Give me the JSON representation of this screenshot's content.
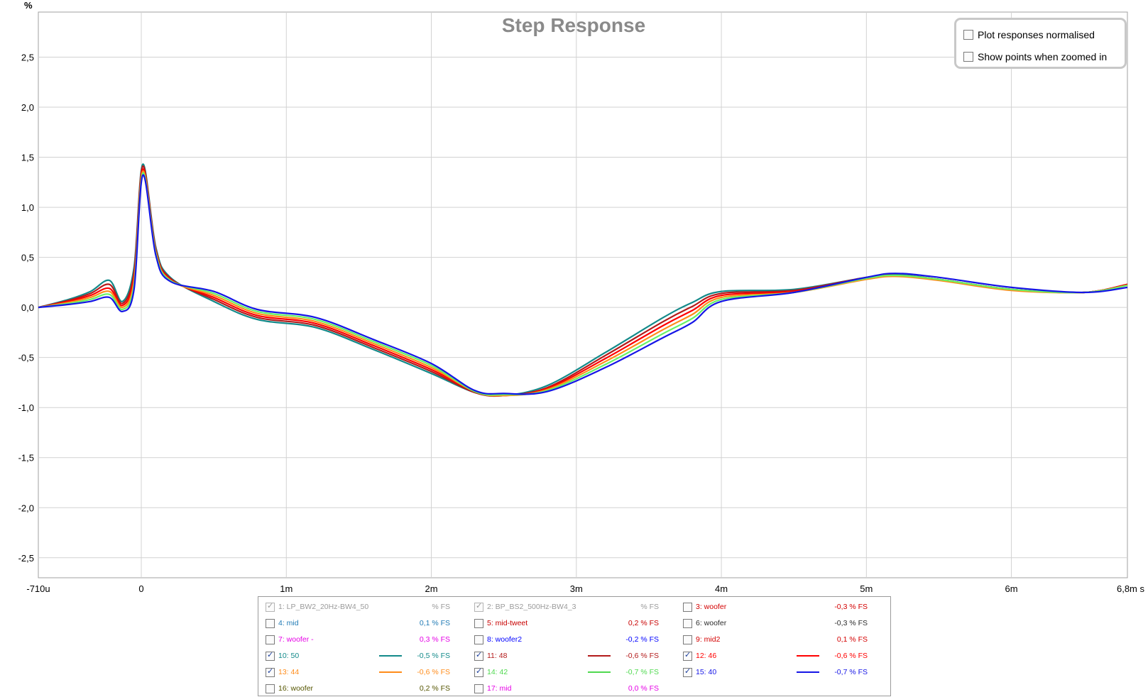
{
  "chart_data": {
    "type": "line",
    "title": "Step Response",
    "ylabel": "%",
    "xlabel": "",
    "xlim": [
      -0.00071,
      0.0068
    ],
    "ylim": [
      -2.7,
      2.95
    ],
    "x_ticks": [
      {
        "v": -0.00071,
        "label": "-710u"
      },
      {
        "v": 0,
        "label": "0"
      },
      {
        "v": 0.001,
        "label": "1m"
      },
      {
        "v": 0.002,
        "label": "2m"
      },
      {
        "v": 0.003,
        "label": "3m"
      },
      {
        "v": 0.004,
        "label": "4m"
      },
      {
        "v": 0.005,
        "label": "5m"
      },
      {
        "v": 0.006,
        "label": "6m"
      },
      {
        "v": 0.0068,
        "label": "6,8m s"
      }
    ],
    "y_ticks": [
      {
        "v": 2.5,
        "label": "2,5"
      },
      {
        "v": 2.0,
        "label": "2,0"
      },
      {
        "v": 1.5,
        "label": "1,5"
      },
      {
        "v": 1.0,
        "label": "1,0"
      },
      {
        "v": 0.5,
        "label": "0,5"
      },
      {
        "v": 0.0,
        "label": "0,0"
      },
      {
        "v": -0.5,
        "label": "-0,5"
      },
      {
        "v": -1.0,
        "label": "-1,0"
      },
      {
        "v": -1.5,
        "label": "-1,5"
      },
      {
        "v": -2.0,
        "label": "-2,0"
      },
      {
        "v": -2.5,
        "label": "-2,5"
      }
    ],
    "grid": true,
    "series": [
      {
        "name": "10: 50",
        "color": "#138a8a",
        "x": [
          -0.00071,
          -0.0005,
          -0.00035,
          -0.00022,
          -0.00013,
          -5e-05,
          1e-05,
          0.0001,
          0.0002,
          0.0005,
          0.0008,
          0.0012,
          0.0016,
          0.002,
          0.0023,
          0.0025,
          0.0028,
          0.0032,
          0.0036,
          0.0038,
          0.004,
          0.0045,
          0.005,
          0.0052,
          0.0055,
          0.006,
          0.0065,
          0.0068
        ],
        "y": [
          0.0,
          0.08,
          0.16,
          0.27,
          0.06,
          0.4,
          1.43,
          0.6,
          0.3,
          0.06,
          -0.12,
          -0.2,
          -0.42,
          -0.66,
          -0.85,
          -0.88,
          -0.78,
          -0.45,
          -0.1,
          0.05,
          0.16,
          0.18,
          0.3,
          0.33,
          0.28,
          0.18,
          0.15,
          0.23
        ]
      },
      {
        "name": "11: 48",
        "color": "#b31b1b",
        "x": [
          -0.00071,
          -0.0005,
          -0.00035,
          -0.00022,
          -0.00013,
          -5e-05,
          1e-05,
          0.0001,
          0.0002,
          0.0005,
          0.0008,
          0.0012,
          0.0016,
          0.002,
          0.0023,
          0.0025,
          0.0028,
          0.0032,
          0.0036,
          0.0038,
          0.004,
          0.0045,
          0.005,
          0.0052,
          0.0055,
          0.006,
          0.0065,
          0.0068
        ],
        "y": [
          0.0,
          0.07,
          0.14,
          0.23,
          0.04,
          0.35,
          1.41,
          0.58,
          0.29,
          0.08,
          -0.1,
          -0.18,
          -0.4,
          -0.64,
          -0.85,
          -0.88,
          -0.8,
          -0.48,
          -0.14,
          0.01,
          0.14,
          0.17,
          0.3,
          0.32,
          0.28,
          0.18,
          0.15,
          0.23
        ]
      },
      {
        "name": "12: 46",
        "color": "#ff0000",
        "x": [
          -0.00071,
          -0.0005,
          -0.00035,
          -0.00022,
          -0.00013,
          -5e-05,
          1e-05,
          0.0001,
          0.0002,
          0.0005,
          0.0008,
          0.0012,
          0.0016,
          0.002,
          0.0023,
          0.0025,
          0.0028,
          0.0032,
          0.0036,
          0.0038,
          0.004,
          0.0045,
          0.005,
          0.0052,
          0.0055,
          0.006,
          0.0065,
          0.0068
        ],
        "y": [
          0.0,
          0.06,
          0.12,
          0.19,
          0.02,
          0.3,
          1.38,
          0.56,
          0.28,
          0.1,
          -0.08,
          -0.16,
          -0.38,
          -0.62,
          -0.84,
          -0.88,
          -0.81,
          -0.51,
          -0.18,
          -0.03,
          0.12,
          0.16,
          0.29,
          0.32,
          0.28,
          0.18,
          0.15,
          0.23
        ]
      },
      {
        "name": "13: 44",
        "color": "#ff8c1a",
        "x": [
          -0.00071,
          -0.0005,
          -0.00035,
          -0.00022,
          -0.00013,
          -5e-05,
          1e-05,
          0.0001,
          0.0002,
          0.0005,
          0.0008,
          0.0012,
          0.0016,
          0.002,
          0.0023,
          0.0025,
          0.0028,
          0.0032,
          0.0036,
          0.0038,
          0.004,
          0.0045,
          0.005,
          0.0052,
          0.0055,
          0.006,
          0.0065,
          0.0068
        ],
        "y": [
          0.0,
          0.05,
          0.1,
          0.16,
          0.0,
          0.26,
          1.36,
          0.55,
          0.27,
          0.12,
          -0.06,
          -0.14,
          -0.36,
          -0.6,
          -0.84,
          -0.88,
          -0.82,
          -0.54,
          -0.22,
          -0.07,
          0.1,
          0.15,
          0.28,
          0.31,
          0.27,
          0.17,
          0.15,
          0.22
        ]
      },
      {
        "name": "14: 42",
        "color": "#66f266",
        "x": [
          -0.00071,
          -0.0005,
          -0.00035,
          -0.00022,
          -0.00013,
          -5e-05,
          1e-05,
          0.0001,
          0.0002,
          0.0005,
          0.0008,
          0.0012,
          0.0016,
          0.002,
          0.0023,
          0.0025,
          0.0028,
          0.0032,
          0.0036,
          0.0038,
          0.004,
          0.0045,
          0.005,
          0.0052,
          0.0055,
          0.006,
          0.0065,
          0.0068
        ],
        "y": [
          0.0,
          0.04,
          0.08,
          0.13,
          -0.02,
          0.22,
          1.34,
          0.54,
          0.27,
          0.14,
          -0.04,
          -0.12,
          -0.34,
          -0.58,
          -0.84,
          -0.87,
          -0.83,
          -0.57,
          -0.26,
          -0.11,
          0.08,
          0.15,
          0.29,
          0.32,
          0.28,
          0.18,
          0.15,
          0.22
        ]
      },
      {
        "name": "15: 40",
        "color": "#1515e6",
        "x": [
          -0.00071,
          -0.0005,
          -0.00035,
          -0.00022,
          -0.00013,
          -5e-05,
          1e-05,
          0.0001,
          0.0002,
          0.0005,
          0.0008,
          0.0012,
          0.0016,
          0.002,
          0.0023,
          0.0025,
          0.0028,
          0.0032,
          0.0036,
          0.0038,
          0.004,
          0.0045,
          0.005,
          0.0052,
          0.0055,
          0.006,
          0.0065,
          0.0068
        ],
        "y": [
          0.0,
          0.03,
          0.06,
          0.1,
          -0.04,
          0.18,
          1.32,
          0.52,
          0.26,
          0.16,
          -0.02,
          -0.1,
          -0.32,
          -0.56,
          -0.83,
          -0.86,
          -0.84,
          -0.6,
          -0.3,
          -0.15,
          0.06,
          0.15,
          0.3,
          0.34,
          0.3,
          0.2,
          0.15,
          0.2
        ]
      }
    ]
  },
  "options": {
    "normalised_label": "Plot responses normalised",
    "normalised_checked": false,
    "show_points_label": "Show points when zoomed in",
    "show_points_checked": false
  },
  "legend": [
    {
      "name": "1: LP_BW2_20Hz-BW4_50",
      "value": "% FS",
      "checked": true,
      "disabled": true,
      "color": "#9a9a9a",
      "line": false
    },
    {
      "name": "2: BP_BS2_500Hz-BW4_3",
      "value": "% FS",
      "checked": true,
      "disabled": true,
      "color": "#9a9a9a",
      "line": false
    },
    {
      "name": "3: woofer",
      "value": "-0,3 % FS",
      "checked": false,
      "disabled": false,
      "color": "#d40000",
      "line": false
    },
    {
      "name": "4: mid",
      "value": "0,1 % FS",
      "checked": false,
      "disabled": false,
      "color": "#1f7ab5",
      "line": false
    },
    {
      "name": "5: mid-tweet",
      "value": "0,2 % FS",
      "checked": false,
      "disabled": false,
      "color": "#c80000",
      "line": false
    },
    {
      "name": "6: woofer",
      "value": "-0,3 % FS",
      "checked": false,
      "disabled": false,
      "color": "#2b2b2b",
      "line": false
    },
    {
      "name": "7: woofer -",
      "value": "0,3 % FS",
      "checked": false,
      "disabled": false,
      "color": "#e600e6",
      "line": false
    },
    {
      "name": "8: woofer2",
      "value": "-0,2 % FS",
      "checked": false,
      "disabled": false,
      "color": "#0000ff",
      "line": false
    },
    {
      "name": "9: mid2",
      "value": "0,1 % FS",
      "checked": false,
      "disabled": false,
      "color": "#d40000",
      "line": false
    },
    {
      "name": "10: 50",
      "value": "-0,5 % FS",
      "checked": true,
      "disabled": false,
      "color": "#138a8a",
      "line": true
    },
    {
      "name": "11: 48",
      "value": "-0,6 % FS",
      "checked": true,
      "disabled": false,
      "color": "#b31b1b",
      "line": true
    },
    {
      "name": "12: 46",
      "value": "-0,6 % FS",
      "checked": true,
      "disabled": false,
      "color": "#ff0000",
      "line": true
    },
    {
      "name": "13: 44",
      "value": "-0,6 % FS",
      "checked": true,
      "disabled": false,
      "color": "#ff8c1a",
      "line": true
    },
    {
      "name": "14: 42",
      "value": "-0,7 % FS",
      "checked": true,
      "disabled": false,
      "color": "#4fd94f",
      "line": true
    },
    {
      "name": "15: 40",
      "value": "-0,7 % FS",
      "checked": true,
      "disabled": false,
      "color": "#1515e6",
      "line": true
    },
    {
      "name": "16: woofer",
      "value": "0,2 % FS",
      "checked": false,
      "disabled": false,
      "color": "#555500",
      "line": false
    },
    {
      "name": "17: mid",
      "value": "0,0 % FS",
      "checked": false,
      "disabled": false,
      "color": "#e600e6",
      "line": false
    }
  ]
}
